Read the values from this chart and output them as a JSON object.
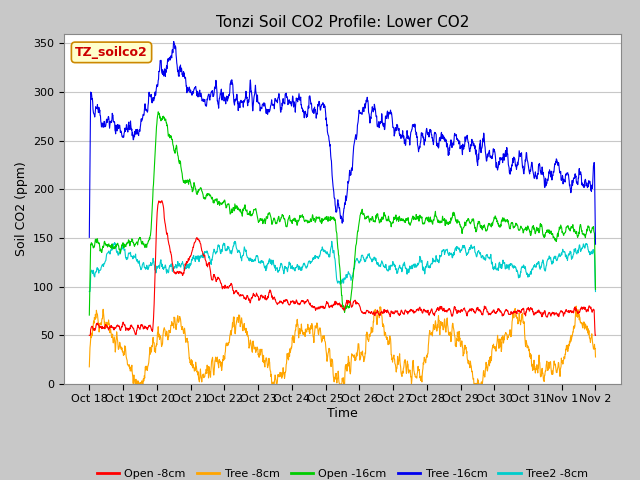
{
  "title": "Tonzi Soil CO2 Profile: Lower CO2",
  "ylabel": "Soil CO2 (ppm)",
  "xlabel": "Time",
  "watermark": "TZ_soilco2",
  "ylim": [
    0,
    360
  ],
  "yticks": [
    0,
    50,
    100,
    150,
    200,
    250,
    300,
    350
  ],
  "x_labels": [
    "Oct 18",
    "Oct 19",
    "Oct 20",
    "Oct 21",
    "Oct 22",
    "Oct 23",
    "Oct 24",
    "Oct 25",
    "Oct 26",
    "Oct 27",
    "Oct 28",
    "Oct 29",
    "Oct 30",
    "Oct 31",
    "Nov 1",
    "Nov 2"
  ],
  "series": {
    "open_8cm": {
      "color": "#FF0000",
      "label": "Open -8cm"
    },
    "tree_8cm": {
      "color": "#FFA500",
      "label": "Tree -8cm"
    },
    "open_16cm": {
      "color": "#00CC00",
      "label": "Open -16cm"
    },
    "tree_16cm": {
      "color": "#0000EE",
      "label": "Tree -16cm"
    },
    "tree2_8cm": {
      "color": "#00CCCC",
      "label": "Tree2 -8cm"
    }
  },
  "fig_bg_color": "#C8C8C8",
  "plot_bg_color": "#FFFFFF",
  "grid_color": "#C8C8C8",
  "title_fontsize": 11,
  "axis_label_fontsize": 9,
  "tick_fontsize": 8
}
